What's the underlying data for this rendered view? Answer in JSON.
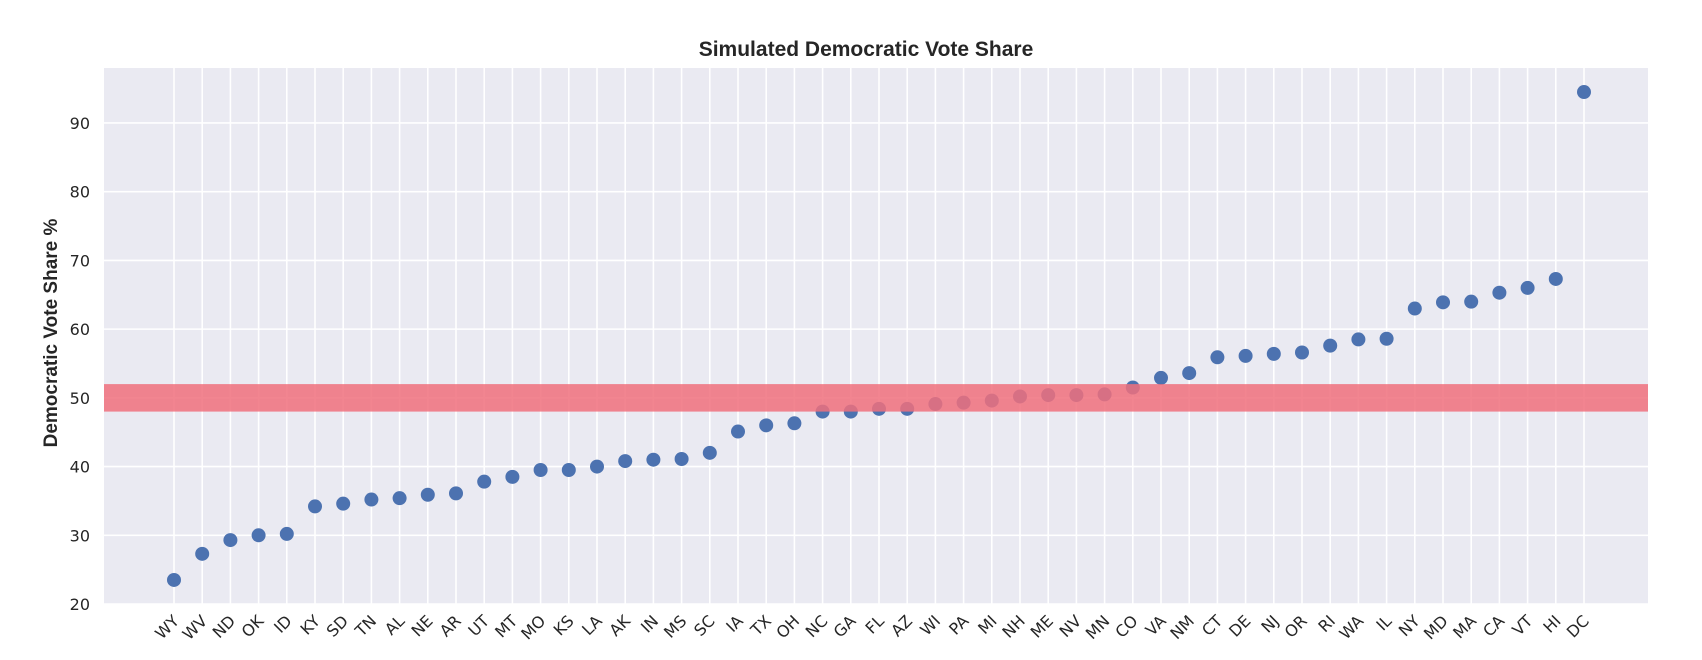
{
  "chart_data": {
    "type": "scatter",
    "title": "Simulated Democratic Vote Share",
    "xlabel": "",
    "ylabel": "Democratic Vote Share %",
    "ylim": [
      20,
      98
    ],
    "yticks": [
      20,
      30,
      40,
      50,
      60,
      70,
      80,
      90
    ],
    "grid": true,
    "legend": "none",
    "colors": {
      "background": "#eaeaf2",
      "grid": "#ffffff",
      "point": "#4c72b0",
      "band": "#f0707c"
    },
    "band": {
      "y0": 48,
      "y1": 52
    },
    "categories": [
      "WY",
      "WV",
      "ND",
      "OK",
      "ID",
      "KY",
      "SD",
      "TN",
      "AL",
      "NE",
      "AR",
      "UT",
      "MT",
      "MO",
      "KS",
      "LA",
      "AK",
      "IN",
      "MS",
      "SC",
      "IA",
      "TX",
      "OH",
      "NC",
      "GA",
      "FL",
      "AZ",
      "WI",
      "PA",
      "MI",
      "NH",
      "ME",
      "NV",
      "MN",
      "CO",
      "VA",
      "NM",
      "CT",
      "DE",
      "NJ",
      "OR",
      "RI",
      "WA",
      "IL",
      "NY",
      "MD",
      "MA",
      "CA",
      "VT",
      "HI",
      "DC"
    ],
    "values": [
      23.5,
      27.3,
      29.3,
      30.0,
      30.2,
      34.2,
      34.6,
      35.2,
      35.4,
      35.9,
      36.1,
      37.8,
      38.5,
      39.5,
      39.5,
      40.0,
      40.8,
      41.0,
      41.1,
      42.0,
      45.1,
      46.0,
      46.3,
      48.0,
      48.0,
      48.4,
      48.4,
      49.1,
      49.3,
      49.6,
      50.2,
      50.4,
      50.4,
      50.5,
      51.5,
      52.9,
      53.6,
      55.9,
      56.1,
      56.4,
      56.6,
      57.6,
      58.5,
      58.6,
      63.0,
      63.9,
      64.0,
      65.3,
      66.0,
      67.3,
      94.5
    ]
  }
}
